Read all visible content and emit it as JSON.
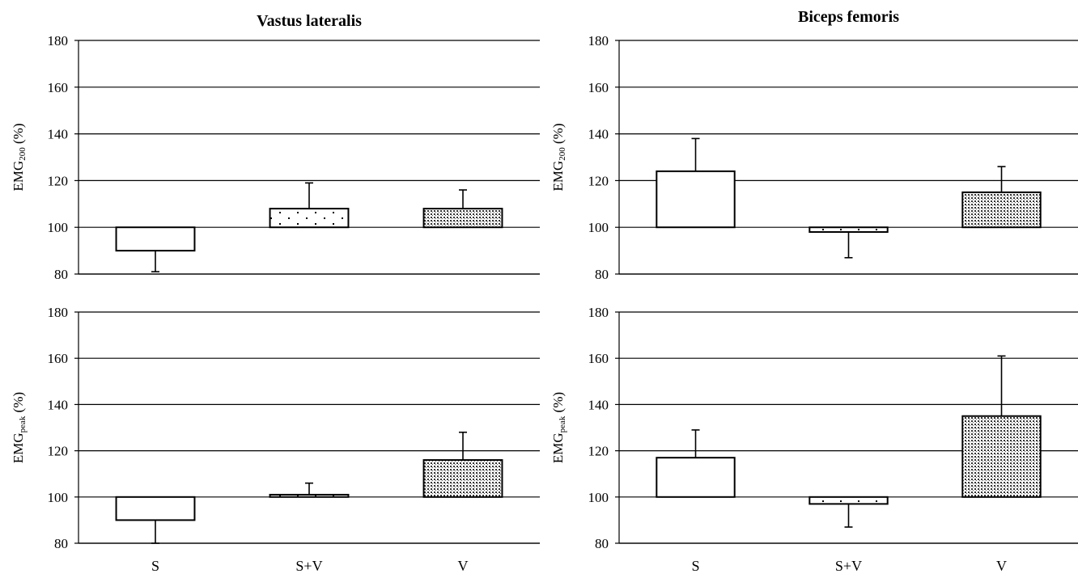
{
  "chart_data": [
    {
      "type": "bar",
      "title": "Vastus lateralis",
      "ylabel": "EMG",
      "ylabel_sub": "200",
      "ylabel_unit": " (%)",
      "categories": [
        "S",
        "S+V",
        "V"
      ],
      "baseline": 100,
      "values": [
        90,
        108,
        108
      ],
      "error_tips": [
        81,
        119,
        116
      ],
      "fills": [
        "white",
        "dots-sparse",
        "dots-dense"
      ],
      "yticks": [
        80,
        100,
        120,
        140,
        160,
        180
      ],
      "ylim": [
        80,
        180
      ],
      "grid": true,
      "show_xticklabels": false
    },
    {
      "type": "bar",
      "title": "Biceps femoris",
      "ylabel": "EMG",
      "ylabel_sub": "200",
      "ylabel_unit": " (%)",
      "categories": [
        "S",
        "S+V",
        "V"
      ],
      "baseline": 100,
      "values": [
        124,
        98,
        115
      ],
      "error_tips": [
        138,
        87,
        126
      ],
      "fills": [
        "white",
        "dots-sparse",
        "dots-dense"
      ],
      "yticks": [
        80,
        100,
        120,
        140,
        160,
        180
      ],
      "ylim": [
        80,
        180
      ],
      "grid": true,
      "show_xticklabels": false
    },
    {
      "type": "bar",
      "title": "",
      "ylabel": "EMG",
      "ylabel_sub": "peak",
      "ylabel_unit": " (%)",
      "categories": [
        "S",
        "S+V",
        "V"
      ],
      "baseline": 100,
      "values": [
        90,
        101,
        116
      ],
      "error_tips": [
        80,
        106,
        128
      ],
      "fills": [
        "white",
        "dots-sparse",
        "dots-dense"
      ],
      "yticks": [
        80,
        100,
        120,
        140,
        160,
        180
      ],
      "ylim": [
        80,
        180
      ],
      "grid": true,
      "show_xticklabels": true
    },
    {
      "type": "bar",
      "title": "",
      "ylabel": "EMG",
      "ylabel_sub": "peak",
      "ylabel_unit": " (%)",
      "categories": [
        "S",
        "S+V",
        "V"
      ],
      "baseline": 100,
      "values": [
        117,
        97,
        135
      ],
      "error_tips": [
        129,
        87,
        161
      ],
      "fills": [
        "white",
        "dots-sparse",
        "dots-dense"
      ],
      "yticks": [
        80,
        100,
        120,
        140,
        160,
        180
      ],
      "ylim": [
        80,
        180
      ],
      "grid": true,
      "show_xticklabels": true
    }
  ]
}
